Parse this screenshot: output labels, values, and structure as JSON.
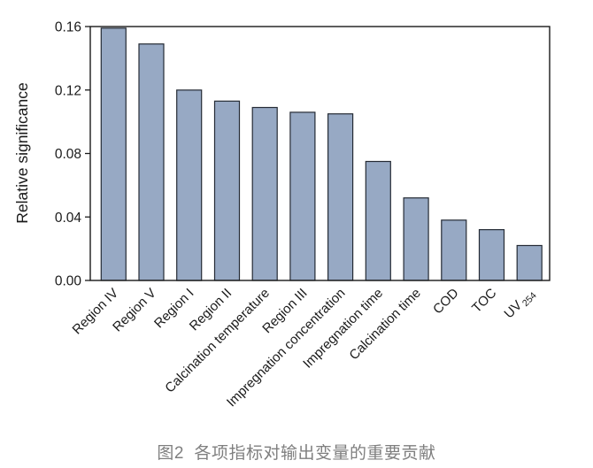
{
  "figure": {
    "caption": "图2  各项指标对输出变量的重要贡献"
  },
  "chart_data": {
    "type": "bar",
    "title": "",
    "xlabel": "",
    "ylabel": "Relative significance",
    "ylim": [
      0,
      0.16
    ],
    "yticks": [
      0,
      0.04,
      0.08,
      0.12,
      0.16
    ],
    "ytick_labels": [
      "0.00",
      "0.04",
      "0.08",
      "0.12",
      "0.16"
    ],
    "grid": false,
    "legend": "none",
    "xtick_rotation_deg": 45,
    "categories": [
      {
        "label": "Region IV"
      },
      {
        "label": "Region V"
      },
      {
        "label": "Region I"
      },
      {
        "label": "Region II"
      },
      {
        "label": "Calcination temperature"
      },
      {
        "label": "Region III"
      },
      {
        "label": "Impregnation concentration"
      },
      {
        "label": "Impregnation time"
      },
      {
        "label": "Calcination time"
      },
      {
        "label": "COD"
      },
      {
        "label": "TOC"
      },
      {
        "label": "UV",
        "sub": "254"
      }
    ],
    "values": [
      0.159,
      0.149,
      0.12,
      0.113,
      0.109,
      0.106,
      0.105,
      0.075,
      0.052,
      0.038,
      0.032,
      0.022
    ],
    "colors": {
      "bar_fill": "#97a9c4",
      "bar_stroke": "#252b35",
      "axis": "#1a1a1a",
      "text": "#1a1a1a",
      "caption": "#7f7f7f"
    }
  }
}
